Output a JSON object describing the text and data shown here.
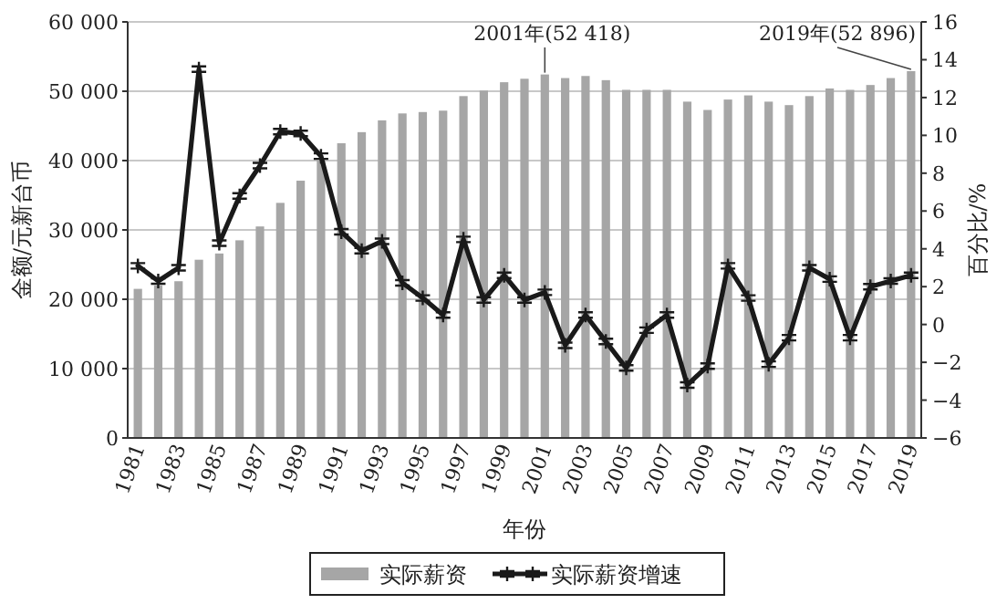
{
  "chart_data": {
    "type": "bar",
    "xlabel": "年份",
    "ylabel": "金额/元新台币",
    "y2label": "百分比/%",
    "categories": [
      "1981",
      null,
      "1983",
      null,
      "1985",
      null,
      "1987",
      null,
      "1989",
      null,
      "1991",
      null,
      "1993",
      null,
      "1995",
      null,
      "1997",
      null,
      "1999",
      null,
      "2001",
      null,
      "2003",
      null,
      "2005",
      null,
      "2007",
      null,
      "2009",
      null,
      "2011",
      null,
      "2013",
      null,
      "2015",
      null,
      "2017",
      null,
      "2019"
    ],
    "series": [
      {
        "name": "实际薪资",
        "color": "#a6a6a6",
        "values": [
          21500,
          22000,
          22600,
          25700,
          26600,
          28500,
          30500,
          33900,
          37100,
          40000,
          42500,
          44100,
          45800,
          46800,
          47000,
          47200,
          49300,
          50100,
          51300,
          51800,
          52418,
          51900,
          52200,
          51600,
          50200,
          50200,
          50200,
          48500,
          47300,
          48800,
          49400,
          48500,
          48000,
          49300,
          50400,
          50200,
          50900,
          51900,
          52896
        ]
      },
      {
        "name": "实际薪资增速",
        "type": "line",
        "axis": "y2",
        "color": "#1a1a1a",
        "marker": "cross",
        "line_style": "solid",
        "values": [
          3.1,
          2.3,
          3.0,
          13.5,
          4.3,
          6.8,
          8.4,
          10.2,
          10.1,
          8.9,
          4.9,
          3.9,
          4.4,
          2.2,
          1.4,
          0.5,
          4.5,
          1.3,
          2.6,
          1.3,
          1.7,
          -1.1,
          0.5,
          -0.9,
          -2.3,
          -0.3,
          0.5,
          -3.2,
          -2.2,
          3.1,
          1.4,
          -2.1,
          -0.7,
          3.0,
          2.4,
          -0.7,
          2.0,
          2.3,
          2.6
        ]
      }
    ],
    "ylim": [
      0,
      60000
    ],
    "yticks": [
      0,
      {
        "value": 10000,
        "label": "10 000"
      },
      {
        "value": 20000,
        "label": "20 000"
      },
      {
        "value": 30000,
        "label": "30 000"
      },
      {
        "value": 40000,
        "label": "40 000"
      },
      {
        "value": 50000,
        "label": "50 000"
      },
      {
        "value": 60000,
        "label": "60 000"
      }
    ],
    "y2lim": [
      -6,
      16
    ],
    "y2ticks": [
      {
        "value": -6,
        "label": "−6"
      },
      {
        "value": -4,
        "label": "−4"
      },
      {
        "value": -2,
        "label": "−2"
      },
      0,
      2,
      4,
      6,
      8,
      10,
      12,
      14,
      16
    ],
    "annotations": [
      {
        "text": "2001年(52 418)",
        "x": "2001",
        "y": 52418
      },
      {
        "text": "2019年(52 896)",
        "x": "2019",
        "y": 52896
      }
    ],
    "grid": "y",
    "legend": "bottom"
  }
}
